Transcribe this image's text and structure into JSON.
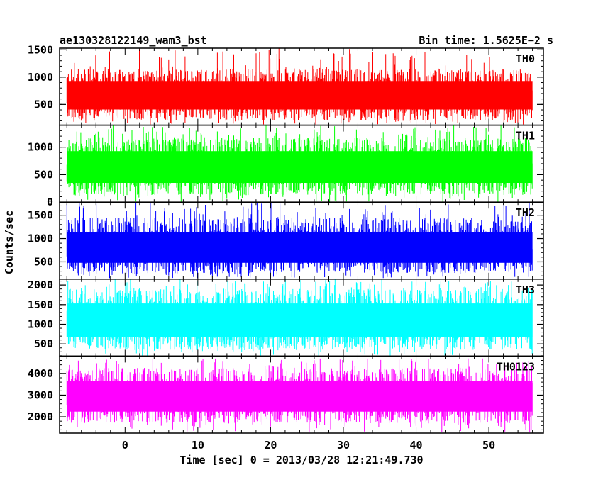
{
  "header": {
    "left_title": "ae130328122149_wam3_bst",
    "right_title": "Bin time: 1.5625E−2 s"
  },
  "chart_data": {
    "type": "line",
    "xlabel": "Time [sec] 0 = 2013/03/28 12:21:49.730",
    "ylabel": "Counts/sec",
    "xlim": [
      -9,
      57.5
    ],
    "x_data_range": [
      -8,
      56
    ],
    "x_ticks": [
      0,
      10,
      20,
      30,
      40,
      50
    ],
    "x_tick_labels": [
      "0",
      "10",
      "20",
      "30",
      "40",
      "50"
    ],
    "grid": false,
    "panels": [
      {
        "name": "TH0",
        "color": "#ff0000",
        "ylim": [
          120,
          1530
        ],
        "y_ticks": [
          500,
          1000,
          1500
        ],
        "y_tick_labels": [
          "500",
          "1000",
          "1500"
        ],
        "mean": 660,
        "typical_low": 200,
        "typical_high": 1150,
        "extreme_low": 130,
        "extreme_high": 1530
      },
      {
        "name": "TH1",
        "color": "#00ff00",
        "ylim": [
          0,
          1400
        ],
        "y_ticks": [
          0,
          500,
          1000
        ],
        "y_tick_labels": [
          "0",
          "500",
          "1000"
        ],
        "mean": 620,
        "typical_low": 130,
        "typical_high": 1180,
        "extreme_low": 0,
        "extreme_high": 1400
      },
      {
        "name": "TH2",
        "color": "#0000ff",
        "ylim": [
          130,
          1780
        ],
        "y_ticks": [
          500,
          1000,
          1500
        ],
        "y_tick_labels": [
          "500",
          "1000",
          "1500"
        ],
        "mean": 760,
        "typical_low": 250,
        "typical_high": 1450,
        "extreme_low": 150,
        "extreme_high": 1780
      },
      {
        "name": "TH3",
        "color": "#00ffff",
        "ylim": [
          190,
          2150
        ],
        "y_ticks": [
          500,
          1000,
          1500,
          2000
        ],
        "y_tick_labels": [
          "500",
          "1000",
          "1500",
          "2000"
        ],
        "mean": 1080,
        "typical_low": 350,
        "typical_high": 1900,
        "extreme_low": 200,
        "extreme_high": 2150
      },
      {
        "name": "TH0123",
        "color": "#ff00ff",
        "ylim": [
          1250,
          4800
        ],
        "y_ticks": [
          2000,
          3000,
          4000
        ],
        "y_tick_labels": [
          "2000",
          "3000",
          "4000"
        ],
        "mean": 2900,
        "typical_low": 1700,
        "typical_high": 4250,
        "extreme_low": 1300,
        "extreme_high": 4700
      }
    ]
  }
}
